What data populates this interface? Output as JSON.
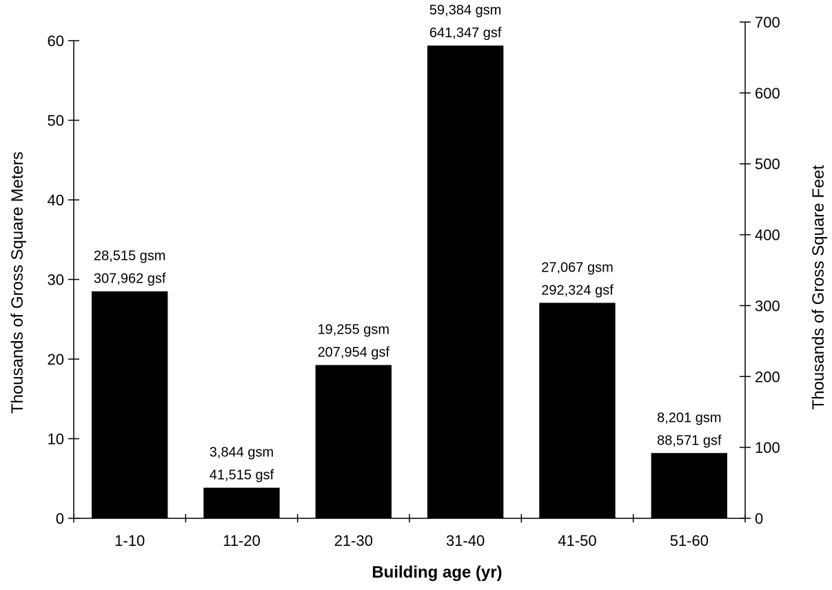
{
  "chart_data": {
    "type": "bar",
    "categories": [
      "1-10",
      "11-20",
      "21-30",
      "31-40",
      "41-50",
      "51-60"
    ],
    "series": [
      {
        "values": [
          28.515,
          3.844,
          19.255,
          59.384,
          27.067,
          8.201
        ]
      }
    ],
    "data_labels": [
      [
        "28,515 gsm",
        "307,962 gsf"
      ],
      [
        "3,844 gsm",
        "41,515 gsf"
      ],
      [
        "19,255 gsm",
        "207,954 gsf"
      ],
      [
        "59,384 gsm",
        "641,347 gsf"
      ],
      [
        "27,067 gsm",
        "292,324 gsf"
      ],
      [
        "8,201 gsm",
        "88,571 gsf"
      ]
    ],
    "title": "",
    "xlabel": "Building age (yr)",
    "ylabel": "Thousands of Gross Square Meters",
    "ylabel_right": "Thousands of Gross Square Feet",
    "ylim": [
      0,
      60
    ],
    "ylim_right": [
      0,
      700
    ],
    "yticks": [
      0,
      10,
      20,
      30,
      40,
      50,
      60
    ],
    "yticks_right": [
      0,
      100,
      200,
      300,
      400,
      500,
      600,
      700
    ],
    "grid": false,
    "legend": "none",
    "bar_color": "#000000"
  }
}
